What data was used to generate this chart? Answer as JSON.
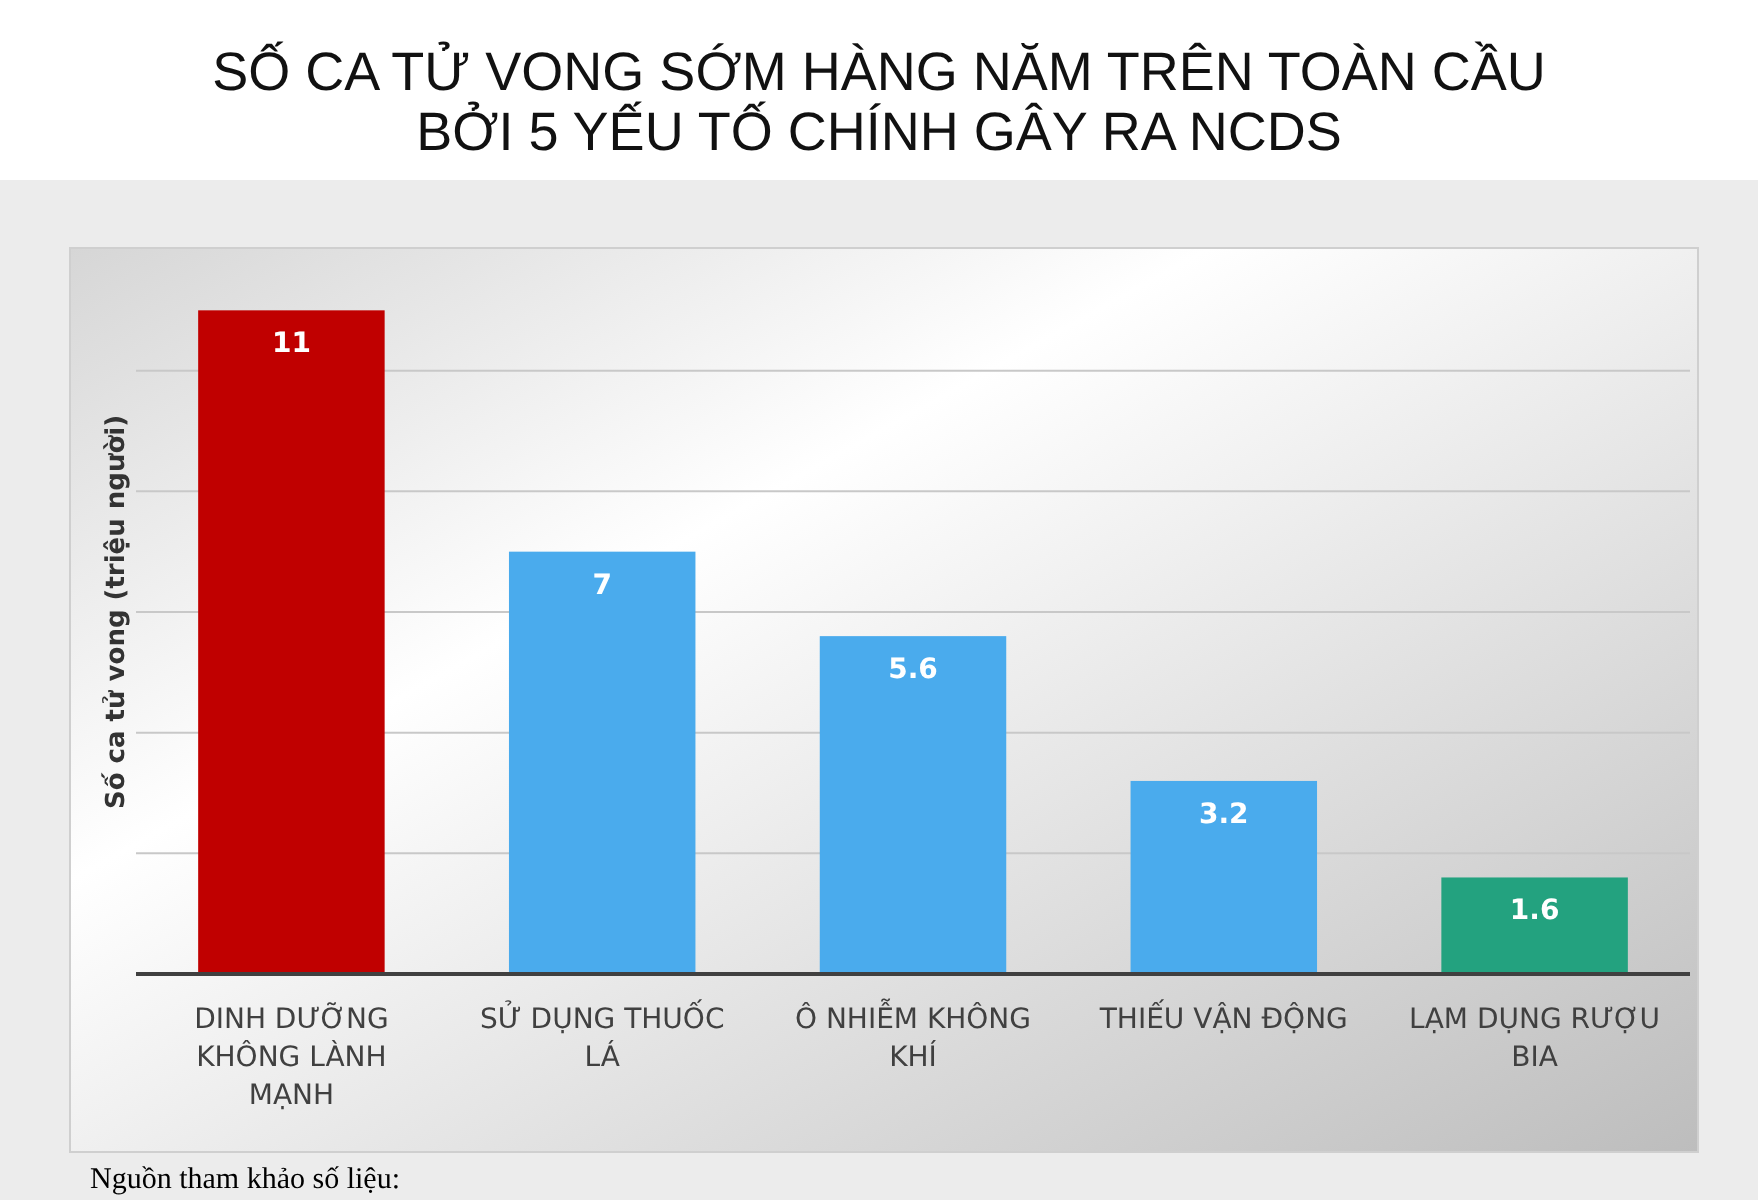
{
  "chart_data": {
    "type": "bar",
    "title": "SỐ CA TỬ VONG SỚM HÀNG NĂM TRÊN TOÀN CẦU\nBỞI 5 YẾU TỐ CHÍNH GÂY RA NCDS",
    "ylabel": "Số ca tử vong (triệu người)",
    "categories": [
      "DINH DƯỠNG KHÔNG LÀNH MẠNH",
      "SỬ DỤNG THUỐC LÁ",
      "Ô NHIỄM KHÔNG KHÍ",
      "THIẾU VẬN ĐỘNG",
      "LẠM DỤNG RƯỢU BIA"
    ],
    "values": [
      11,
      7,
      5.6,
      3.2,
      1.6
    ],
    "colors": [
      "#c00000",
      "#4aabed",
      "#4aabed",
      "#4aabed",
      "#23a27f"
    ],
    "ylim": [
      0,
      12
    ],
    "yticks": [
      {
        "value": 2,
        "label": null
      },
      {
        "value": 4,
        "label": null
      },
      {
        "value": 6,
        "label": null
      },
      {
        "value": 8,
        "label": null
      },
      {
        "value": 10,
        "label": null
      }
    ],
    "grid": "y",
    "tick_labels": "x",
    "data_labels": true,
    "annotations": [
      "Nguồn tham khảo số liệu:"
    ]
  }
}
